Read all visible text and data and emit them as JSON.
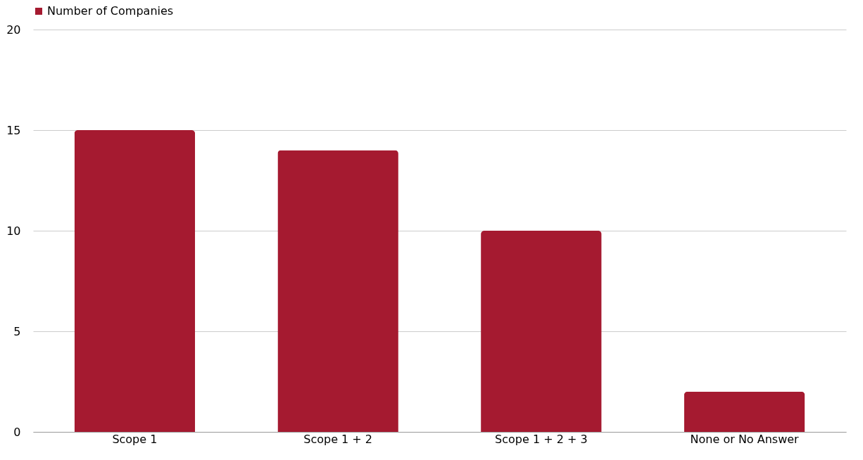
{
  "chart_data": {
    "type": "bar",
    "categories": [
      "Scope 1",
      "Scope 1 + 2",
      "Scope 1 + 2 + 3",
      "None or No Answer"
    ],
    "series": [
      {
        "name": "Number of Companies",
        "color": "#a51a30",
        "values": [
          15,
          14,
          10,
          2
        ]
      }
    ],
    "ylim": [
      0,
      20
    ],
    "yticks": [
      0,
      5,
      10,
      15,
      20
    ],
    "grid": "y",
    "legend": "top"
  }
}
